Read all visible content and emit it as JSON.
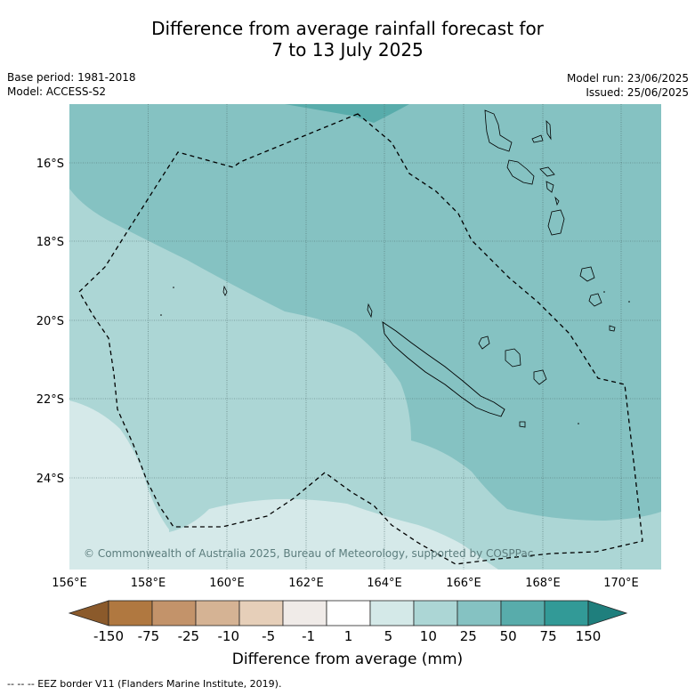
{
  "title_line1": "Difference from average rainfall forecast for",
  "title_line2": "7 to 13 July 2025",
  "base_period": "Base period: 1981-2018",
  "model": "Model: ACCESS-S2",
  "model_run": "Model run: 23/06/2025",
  "issued": "Issued: 25/06/2025",
  "copyright": "© Commonwealth of Australia 2025, Bureau of Meteorology, supported by COSPPac",
  "lat_labels": [
    "16°S",
    "18°S",
    "20°S",
    "22°S",
    "24°S"
  ],
  "lon_labels": [
    "156°E",
    "158°E",
    "160°E",
    "162°E",
    "164°E",
    "166°E",
    "168°E",
    "170°E"
  ],
  "colorbar": {
    "label": "Difference from average (mm)",
    "ticks": [
      "-150",
      "-75",
      "-25",
      "-10",
      "-5",
      "-1",
      "1",
      "5",
      "10",
      "25",
      "50",
      "75",
      "150"
    ],
    "colors": [
      "#8b5a2b",
      "#b07840",
      "#c3936a",
      "#d5b394",
      "#e6cfb9",
      "#f0ebe8",
      "#ffffff",
      "#d4e9e8",
      "#acd6d5",
      "#85c2c2",
      "#58acab",
      "#329a97",
      "#1f7f7d"
    ]
  },
  "footer": "-- -- -- EEZ border V11 (Flanders Marine Institute, 2019).",
  "colors": {
    "band_light": "#d5e9e9",
    "band_mid": "#acd6d5",
    "band_main": "#85c2c2",
    "band_dark": "#58acab"
  }
}
